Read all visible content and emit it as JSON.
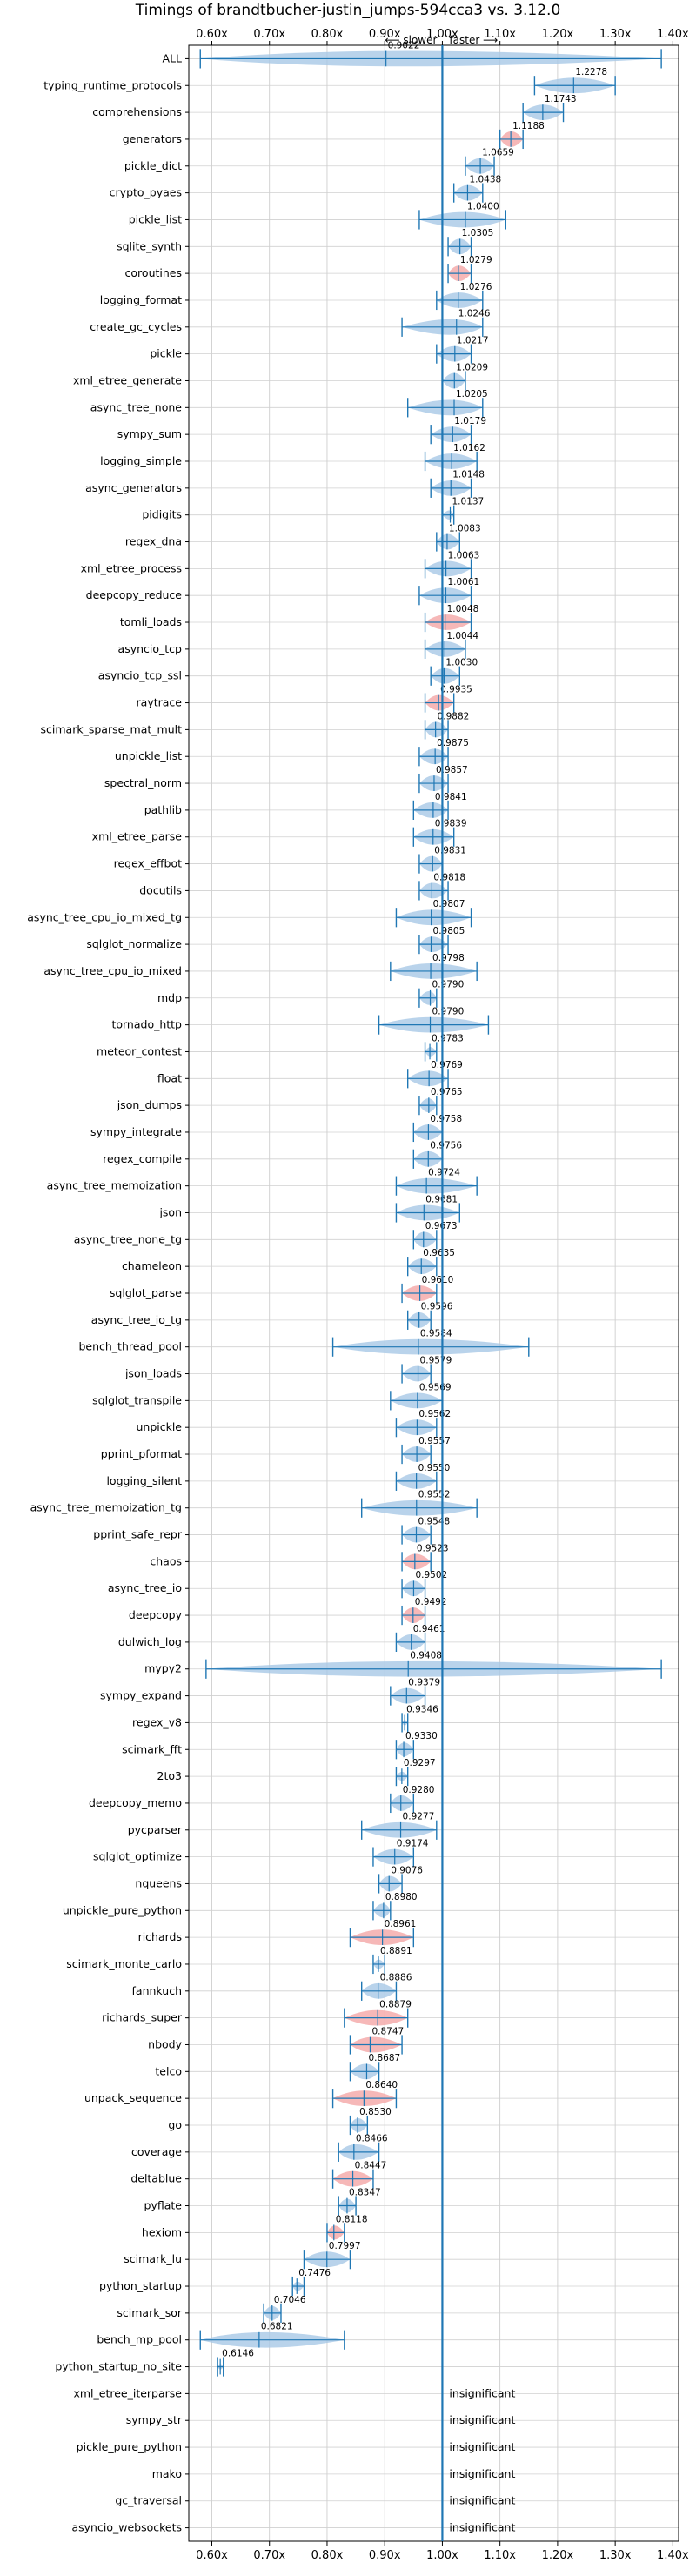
{
  "chart_data": {
    "type": "violin",
    "title": "Timings of brandtbucher-justin_jumps-594cca3 vs. 3.12.0",
    "annotation_left": "⟵ slower",
    "annotation_right": "faster ⟶",
    "xlim": [
      0.56,
      1.41
    ],
    "x_ticks": [
      0.6,
      0.7,
      0.8,
      0.9,
      1.0,
      1.1,
      1.2,
      1.3,
      1.4
    ],
    "x_tick_labels": [
      "0.60x",
      "0.70x",
      "0.80x",
      "0.90x",
      "1.00x",
      "1.10x",
      "1.20x",
      "1.30x",
      "1.40x"
    ],
    "reference_line": 1.0,
    "grid": true,
    "colors": {
      "violin": "#a8c8e6",
      "significant_violin": "#f4a6a6",
      "whisker": "#1f77b4",
      "reference": "#1f77b4"
    },
    "insignificant_label": "insignificant",
    "benchmarks": [
      {
        "name": "ALL",
        "value": 0.9022,
        "label": "0.9022",
        "min": 0.58,
        "max": 1.38
      },
      {
        "name": "typing_runtime_protocols",
        "value": 1.2278,
        "label": "1.2278",
        "min": 1.16,
        "max": 1.3
      },
      {
        "name": "comprehensions",
        "value": 1.1743,
        "label": "1.1743",
        "min": 1.14,
        "max": 1.21
      },
      {
        "name": "generators",
        "value": 1.1188,
        "label": "1.1188",
        "min": 1.1,
        "max": 1.14,
        "highlight": true
      },
      {
        "name": "pickle_dict",
        "value": 1.0659,
        "label": "1.0659",
        "min": 1.04,
        "max": 1.09
      },
      {
        "name": "crypto_pyaes",
        "value": 1.0438,
        "label": "1.0438",
        "min": 1.02,
        "max": 1.07
      },
      {
        "name": "pickle_list",
        "value": 1.04,
        "label": "1.0400",
        "min": 0.96,
        "max": 1.11
      },
      {
        "name": "sqlite_synth",
        "value": 1.0305,
        "label": "1.0305",
        "min": 1.01,
        "max": 1.05
      },
      {
        "name": "coroutines",
        "value": 1.0279,
        "label": "1.0279",
        "min": 1.01,
        "max": 1.05,
        "highlight": true
      },
      {
        "name": "logging_format",
        "value": 1.0276,
        "label": "1.0276",
        "min": 0.99,
        "max": 1.07
      },
      {
        "name": "create_gc_cycles",
        "value": 1.0246,
        "label": "1.0246",
        "min": 0.93,
        "max": 1.07
      },
      {
        "name": "pickle",
        "value": 1.0217,
        "label": "1.0217",
        "min": 0.99,
        "max": 1.05
      },
      {
        "name": "xml_etree_generate",
        "value": 1.0209,
        "label": "1.0209",
        "min": 1.0,
        "max": 1.04
      },
      {
        "name": "async_tree_none",
        "value": 1.0205,
        "label": "1.0205",
        "min": 0.94,
        "max": 1.07
      },
      {
        "name": "sympy_sum",
        "value": 1.0179,
        "label": "1.0179",
        "min": 0.98,
        "max": 1.05
      },
      {
        "name": "logging_simple",
        "value": 1.0162,
        "label": "1.0162",
        "min": 0.97,
        "max": 1.06
      },
      {
        "name": "async_generators",
        "value": 1.0148,
        "label": "1.0148",
        "min": 0.98,
        "max": 1.05
      },
      {
        "name": "pidigits",
        "value": 1.0137,
        "label": "1.0137",
        "min": 1.0,
        "max": 1.02
      },
      {
        "name": "regex_dna",
        "value": 1.0083,
        "label": "1.0083",
        "min": 0.99,
        "max": 1.03
      },
      {
        "name": "xml_etree_process",
        "value": 1.0063,
        "label": "1.0063",
        "min": 0.97,
        "max": 1.05
      },
      {
        "name": "deepcopy_reduce",
        "value": 1.0061,
        "label": "1.0061",
        "min": 0.96,
        "max": 1.05
      },
      {
        "name": "tomli_loads",
        "value": 1.0048,
        "label": "1.0048",
        "min": 0.97,
        "max": 1.05,
        "highlight": true
      },
      {
        "name": "asyncio_tcp",
        "value": 1.0044,
        "label": "1.0044",
        "min": 0.97,
        "max": 1.04
      },
      {
        "name": "asyncio_tcp_ssl",
        "value": 1.003,
        "label": "1.0030",
        "min": 0.98,
        "max": 1.03
      },
      {
        "name": "raytrace",
        "value": 0.9935,
        "label": "0.9935",
        "min": 0.97,
        "max": 1.02,
        "highlight": true
      },
      {
        "name": "scimark_sparse_mat_mult",
        "value": 0.9882,
        "label": "0.9882",
        "min": 0.97,
        "max": 1.01
      },
      {
        "name": "unpickle_list",
        "value": 0.9875,
        "label": "0.9875",
        "min": 0.96,
        "max": 1.01
      },
      {
        "name": "spectral_norm",
        "value": 0.9857,
        "label": "0.9857",
        "min": 0.96,
        "max": 1.01
      },
      {
        "name": "pathlib",
        "value": 0.9841,
        "label": "0.9841",
        "min": 0.95,
        "max": 1.01
      },
      {
        "name": "xml_etree_parse",
        "value": 0.9839,
        "label": "0.9839",
        "min": 0.95,
        "max": 1.02
      },
      {
        "name": "regex_effbot",
        "value": 0.9831,
        "label": "0.9831",
        "min": 0.96,
        "max": 1.0
      },
      {
        "name": "docutils",
        "value": 0.9818,
        "label": "0.9818",
        "min": 0.96,
        "max": 1.01
      },
      {
        "name": "async_tree_cpu_io_mixed_tg",
        "value": 0.9807,
        "label": "0.9807",
        "min": 0.92,
        "max": 1.05
      },
      {
        "name": "sqlglot_normalize",
        "value": 0.9805,
        "label": "0.9805",
        "min": 0.96,
        "max": 1.01
      },
      {
        "name": "async_tree_cpu_io_mixed",
        "value": 0.9798,
        "label": "0.9798",
        "min": 0.91,
        "max": 1.06
      },
      {
        "name": "mdp",
        "value": 0.979,
        "label": "0.9790",
        "min": 0.96,
        "max": 0.99
      },
      {
        "name": "tornado_http",
        "value": 0.979,
        "label": "0.9790",
        "min": 0.89,
        "max": 1.08
      },
      {
        "name": "meteor_contest",
        "value": 0.9783,
        "label": "0.9783",
        "min": 0.97,
        "max": 0.99
      },
      {
        "name": "float",
        "value": 0.9769,
        "label": "0.9769",
        "min": 0.94,
        "max": 1.01
      },
      {
        "name": "json_dumps",
        "value": 0.9765,
        "label": "0.9765",
        "min": 0.96,
        "max": 0.99
      },
      {
        "name": "sympy_integrate",
        "value": 0.9758,
        "label": "0.9758",
        "min": 0.95,
        "max": 1.0
      },
      {
        "name": "regex_compile",
        "value": 0.9756,
        "label": "0.9756",
        "min": 0.95,
        "max": 1.0
      },
      {
        "name": "async_tree_memoization",
        "value": 0.9724,
        "label": "0.9724",
        "min": 0.92,
        "max": 1.06
      },
      {
        "name": "json",
        "value": 0.9681,
        "label": "0.9681",
        "min": 0.92,
        "max": 1.03
      },
      {
        "name": "async_tree_none_tg",
        "value": 0.9673,
        "label": "0.9673",
        "min": 0.95,
        "max": 0.99
      },
      {
        "name": "chameleon",
        "value": 0.9635,
        "label": "0.9635",
        "min": 0.94,
        "max": 0.99
      },
      {
        "name": "sqlglot_parse",
        "value": 0.961,
        "label": "0.9610",
        "min": 0.93,
        "max": 0.99,
        "highlight": true
      },
      {
        "name": "async_tree_io_tg",
        "value": 0.9596,
        "label": "0.9596",
        "min": 0.94,
        "max": 0.98
      },
      {
        "name": "bench_thread_pool",
        "value": 0.9584,
        "label": "0.9584",
        "min": 0.81,
        "max": 1.15
      },
      {
        "name": "json_loads",
        "value": 0.9579,
        "label": "0.9579",
        "min": 0.93,
        "max": 0.98
      },
      {
        "name": "sqlglot_transpile",
        "value": 0.9569,
        "label": "0.9569",
        "min": 0.91,
        "max": 1.0
      },
      {
        "name": "unpickle",
        "value": 0.9562,
        "label": "0.9562",
        "min": 0.92,
        "max": 0.99
      },
      {
        "name": "pprint_pformat",
        "value": 0.9557,
        "label": "0.9557",
        "min": 0.93,
        "max": 0.98
      },
      {
        "name": "logging_silent",
        "value": 0.955,
        "label": "0.9550",
        "min": 0.92,
        "max": 0.99
      },
      {
        "name": "async_tree_memoization_tg",
        "value": 0.9552,
        "label": "0.9552",
        "min": 0.86,
        "max": 1.06
      },
      {
        "name": "pprint_safe_repr",
        "value": 0.9548,
        "label": "0.9548",
        "min": 0.93,
        "max": 0.98
      },
      {
        "name": "chaos",
        "value": 0.9523,
        "label": "0.9523",
        "min": 0.93,
        "max": 0.98,
        "highlight": true
      },
      {
        "name": "async_tree_io",
        "value": 0.9502,
        "label": "0.9502",
        "min": 0.93,
        "max": 0.97
      },
      {
        "name": "deepcopy",
        "value": 0.9492,
        "label": "0.9492",
        "min": 0.93,
        "max": 0.97,
        "highlight": true
      },
      {
        "name": "dulwich_log",
        "value": 0.9461,
        "label": "0.9461",
        "min": 0.92,
        "max": 0.97
      },
      {
        "name": "mypy2",
        "value": 0.9408,
        "label": "0.9408",
        "min": 0.59,
        "max": 1.38
      },
      {
        "name": "sympy_expand",
        "value": 0.9379,
        "label": "0.9379",
        "min": 0.91,
        "max": 0.97
      },
      {
        "name": "regex_v8",
        "value": 0.9346,
        "label": "0.9346",
        "min": 0.93,
        "max": 0.94
      },
      {
        "name": "scimark_fft",
        "value": 0.933,
        "label": "0.9330",
        "min": 0.92,
        "max": 0.95
      },
      {
        "name": "2to3",
        "value": 0.9297,
        "label": "0.9297",
        "min": 0.92,
        "max": 0.94
      },
      {
        "name": "deepcopy_memo",
        "value": 0.928,
        "label": "0.9280",
        "min": 0.91,
        "max": 0.95
      },
      {
        "name": "pycparser",
        "value": 0.9277,
        "label": "0.9277",
        "min": 0.86,
        "max": 0.99
      },
      {
        "name": "sqlglot_optimize",
        "value": 0.9174,
        "label": "0.9174",
        "min": 0.88,
        "max": 0.95
      },
      {
        "name": "nqueens",
        "value": 0.9076,
        "label": "0.9076",
        "min": 0.89,
        "max": 0.93
      },
      {
        "name": "unpickle_pure_python",
        "value": 0.898,
        "label": "0.8980",
        "min": 0.88,
        "max": 0.91
      },
      {
        "name": "richards",
        "value": 0.8961,
        "label": "0.8961",
        "min": 0.84,
        "max": 0.95,
        "highlight": true
      },
      {
        "name": "scimark_monte_carlo",
        "value": 0.8891,
        "label": "0.8891",
        "min": 0.88,
        "max": 0.9
      },
      {
        "name": "fannkuch",
        "value": 0.8886,
        "label": "0.8886",
        "min": 0.86,
        "max": 0.92
      },
      {
        "name": "richards_super",
        "value": 0.8879,
        "label": "0.8879",
        "min": 0.83,
        "max": 0.94,
        "highlight": true
      },
      {
        "name": "nbody",
        "value": 0.8747,
        "label": "0.8747",
        "min": 0.84,
        "max": 0.93,
        "highlight": true
      },
      {
        "name": "telco",
        "value": 0.8687,
        "label": "0.8687",
        "min": 0.84,
        "max": 0.89
      },
      {
        "name": "unpack_sequence",
        "value": 0.864,
        "label": "0.8640",
        "min": 0.81,
        "max": 0.92,
        "highlight": true
      },
      {
        "name": "go",
        "value": 0.853,
        "label": "0.8530",
        "min": 0.84,
        "max": 0.87
      },
      {
        "name": "coverage",
        "value": 0.8466,
        "label": "0.8466",
        "min": 0.82,
        "max": 0.89
      },
      {
        "name": "deltablue",
        "value": 0.8447,
        "label": "0.8447",
        "min": 0.81,
        "max": 0.88,
        "highlight": true
      },
      {
        "name": "pyflate",
        "value": 0.8347,
        "label": "0.8347",
        "min": 0.82,
        "max": 0.85
      },
      {
        "name": "hexiom",
        "value": 0.8118,
        "label": "0.8118",
        "min": 0.8,
        "max": 0.83,
        "highlight": true
      },
      {
        "name": "scimark_lu",
        "value": 0.7997,
        "label": "0.7997",
        "min": 0.76,
        "max": 0.84
      },
      {
        "name": "python_startup",
        "value": 0.7476,
        "label": "0.7476",
        "min": 0.74,
        "max": 0.76
      },
      {
        "name": "scimark_sor",
        "value": 0.7046,
        "label": "0.7046",
        "min": 0.69,
        "max": 0.72
      },
      {
        "name": "bench_mp_pool",
        "value": 0.6821,
        "label": "0.6821",
        "min": 0.58,
        "max": 0.83
      },
      {
        "name": "python_startup_no_site",
        "value": 0.6146,
        "label": "0.6146",
        "min": 0.61,
        "max": 0.62
      },
      {
        "name": "xml_etree_iterparse",
        "insignificant": true
      },
      {
        "name": "sympy_str",
        "insignificant": true
      },
      {
        "name": "pickle_pure_python",
        "insignificant": true
      },
      {
        "name": "mako",
        "insignificant": true
      },
      {
        "name": "gc_traversal",
        "insignificant": true
      },
      {
        "name": "asyncio_websockets",
        "insignificant": true
      }
    ]
  }
}
